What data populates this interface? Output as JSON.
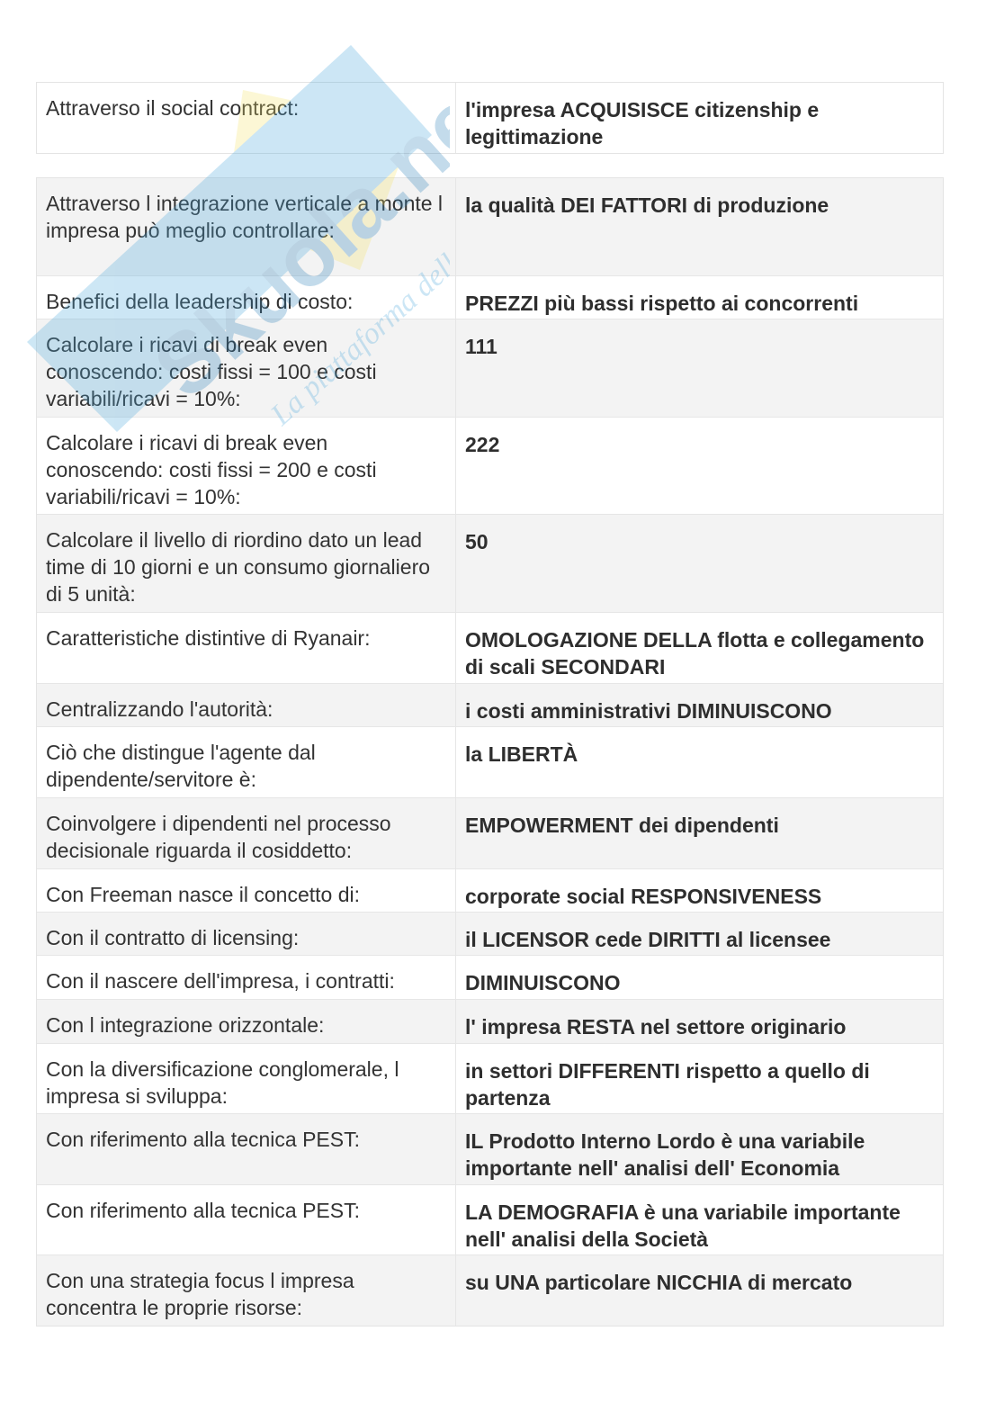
{
  "watermark": {
    "brand": "Skuola.net",
    "tagline": "La piattaforma dello studente",
    "colors": {
      "blue": "#4aa8dc",
      "yellow": "#f6e46a"
    }
  },
  "table_top": [
    {
      "q": "Attraverso il social contract:",
      "a": "l'impresa ACQUISISCE citizenship e legittimazione"
    }
  ],
  "table_main": [
    {
      "q": "Attraverso l  integrazione verticale a monte l  impresa può meglio controllare:",
      "a": "la qualità DEI FATTORI di produzione"
    },
    {
      "q": "Benefici della leadership di costo:",
      "a": "PREZZI più bassi rispetto ai concorrenti"
    },
    {
      "q": "Calcolare i ricavi di break even conoscendo: costi fissi = 100 e costi variabili/ricavi = 10%:",
      "a": "111"
    },
    {
      "q": "Calcolare i ricavi di break even conoscendo: costi fissi = 200 e costi variabili/ricavi = 10%:",
      "a": "222"
    },
    {
      "q": "Calcolare il livello di riordino dato un lead time di 10 giorni e un consumo giornaliero di 5 unità:",
      "a": "50"
    },
    {
      "q": "Caratteristiche distintive di Ryanair:",
      "a": "OMOLOGAZIONE DELLA flotta e collegamento di scali SECONDARI"
    },
    {
      "q": "Centralizzando l'autorità:",
      "a": "i costi amministrativi DIMINUISCONO"
    },
    {
      "q": "Ciò che distingue l'agente dal dipendente/servitore è:",
      "a": "la LIBERTÀ"
    },
    {
      "q": "Coinvolgere i dipendenti nel processo decisionale riguarda il cosiddetto:",
      "a": "EMPOWERMENT dei dipendenti"
    },
    {
      "q": "Con Freeman nasce il concetto di:",
      "a": "corporate social RESPONSIVENESS"
    },
    {
      "q": "Con il contratto di licensing:",
      "a": "il LICENSOR cede DIRITTI al licensee"
    },
    {
      "q": "Con il nascere dell'impresa, i contratti:",
      "a": "DIMINUISCONO"
    },
    {
      "q": "Con l  integrazione orizzontale:",
      "a": "l' impresa RESTA nel settore originario"
    },
    {
      "q": "Con la diversificazione conglomerale, l  impresa si sviluppa:",
      "a": "in settori DIFFERENTI rispetto a quello di partenza"
    },
    {
      "q": "Con riferimento alla tecnica PEST:",
      "a": "IL Prodotto Interno Lordo è una variabile importante nell' analisi dell' Economia"
    },
    {
      "q": "Con riferimento alla tecnica PEST:",
      "a": "LA DEMOGRAFIA è una variabile importante nell' analisi della Società"
    },
    {
      "q": "Con una strategia focus l  impresa concentra le proprie risorse:",
      "a": "su UNA particolare NICCHIA di mercato"
    }
  ]
}
